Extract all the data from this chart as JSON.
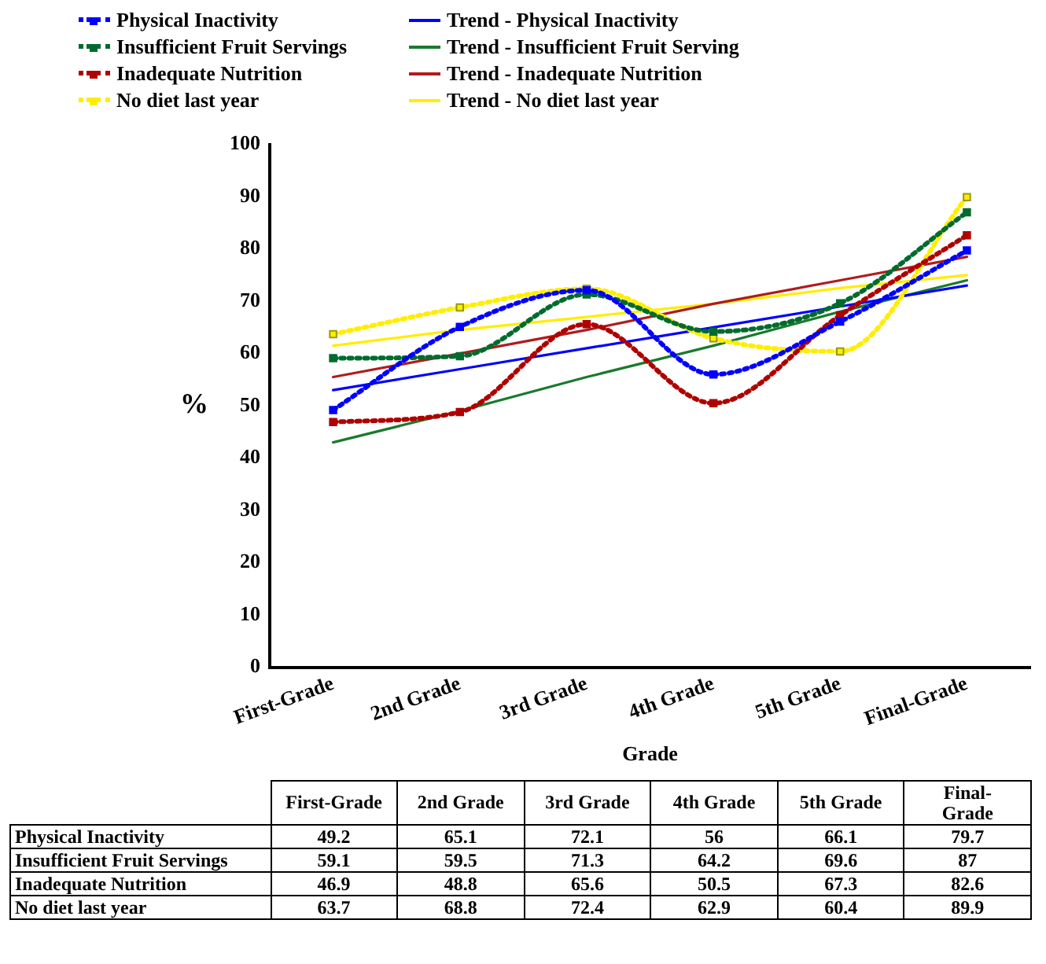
{
  "chart_data": {
    "type": "line",
    "xlabel": "Grade",
    "ylabel": "%",
    "categories": [
      "First-Grade",
      "2nd Grade",
      "3rd Grade",
      "4th Grade",
      "5th Grade",
      "Final-Grade"
    ],
    "ylim": [
      0,
      100
    ],
    "yticks": [
      0,
      10,
      20,
      30,
      40,
      50,
      60,
      70,
      80,
      90,
      100
    ],
    "grid": false,
    "legend": "top",
    "series": [
      {
        "name": "Physical Inactivity",
        "color": "#0000ff",
        "values": [
          49.2,
          65.1,
          72.1,
          56,
          66.1,
          79.7
        ],
        "value_labels": [
          "49.2",
          "65.1",
          "72.1",
          "56",
          "66.1",
          "79.7"
        ],
        "marker": "square",
        "line_style": "dotted"
      },
      {
        "name": "Insufficient Fruit Servings",
        "color": "#006b2e",
        "values": [
          59.1,
          59.5,
          71.3,
          64.2,
          69.6,
          87
        ],
        "value_labels": [
          "59.1",
          "59.5",
          "71.3",
          "64.2",
          "69.6",
          "87"
        ],
        "marker": "square",
        "line_style": "dotted"
      },
      {
        "name": "Inadequate Nutrition",
        "color": "#b00000",
        "values": [
          46.9,
          48.8,
          65.6,
          50.5,
          67.3,
          82.6
        ],
        "value_labels": [
          "46.9",
          "48.8",
          "65.6",
          "50.5",
          "67.3",
          "82.6"
        ],
        "marker": "square",
        "line_style": "dotted"
      },
      {
        "name": "No diet last year",
        "color": "#ffee00",
        "values": [
          63.7,
          68.8,
          72.4,
          62.9,
          60.4,
          89.9
        ],
        "value_labels": [
          "63.7",
          "68.8",
          "72.4",
          "62.9",
          "60.4",
          "89.9"
        ],
        "marker": "square",
        "line_style": "dotted"
      },
      {
        "name": "Trend - Physical Inactivity",
        "color": "#0000ff",
        "values": [
          53,
          57,
          61,
          65,
          69,
          73
        ],
        "marker": "none",
        "line_style": "solid"
      },
      {
        "name": "Trend - Insufficient Fruit Serving",
        "color": "#1a7a2e",
        "values": [
          43,
          49,
          55.5,
          61.5,
          68,
          74
        ],
        "marker": "none",
        "line_style": "solid"
      },
      {
        "name": "Trend - Inadequate Nutrition",
        "color": "#b01c1c",
        "values": [
          55.5,
          60,
          64.5,
          69.5,
          74,
          78.5
        ],
        "marker": "none",
        "line_style": "solid"
      },
      {
        "name": "Trend - No diet last year",
        "color": "#ffee00",
        "values": [
          61.5,
          64.5,
          67,
          69.5,
          72.5,
          75
        ],
        "marker": "none",
        "line_style": "solid"
      }
    ]
  }
}
